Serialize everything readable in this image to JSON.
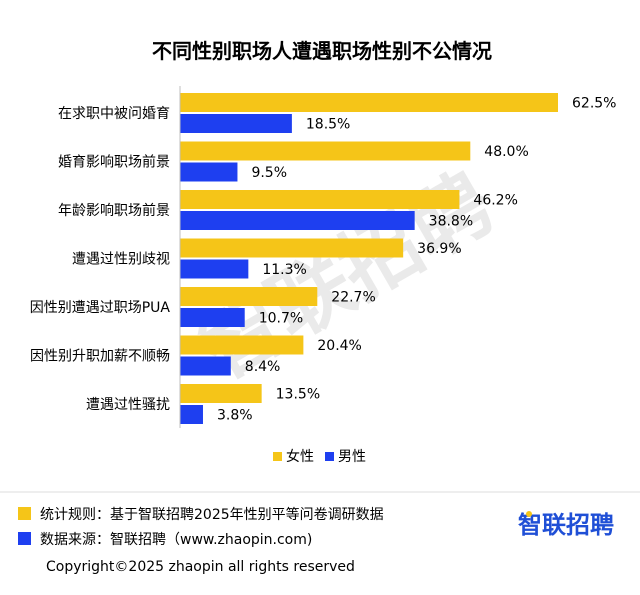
{
  "chart_data": {
    "type": "bar",
    "orientation": "horizontal",
    "title": "不同性别职场人遭遇职场性别不公情况",
    "categories": [
      "在求职中被问婚育",
      "婚育影响职场前景",
      "年龄影响职场前景",
      "遭遇过性别歧视",
      "因性别遭遇过职场PUA",
      "因性别升职加薪不顺畅",
      "遭遇过性骚扰"
    ],
    "series": [
      {
        "name": "女性",
        "color": "#f5c518",
        "values": [
          62.5,
          48.0,
          46.2,
          36.9,
          22.7,
          20.4,
          13.5
        ],
        "labels": [
          "62.5%",
          "48.0%",
          "46.2%",
          "36.9%",
          "22.7%",
          "20.4%",
          "13.5%"
        ]
      },
      {
        "name": "男性",
        "color": "#1e3ff0",
        "values": [
          18.5,
          9.5,
          38.8,
          11.3,
          10.7,
          8.4,
          3.8
        ],
        "labels": [
          "18.5%",
          "9.5%",
          "38.8%",
          "11.3%",
          "10.7%",
          "8.4%",
          "3.8%"
        ]
      }
    ],
    "xlim": [
      0,
      65
    ],
    "legend_position": "bottom",
    "grid": false
  },
  "watermark": "智联招聘",
  "footer": {
    "rule": "统计规则：基于智联招聘2025年性别平等问卷调研数据",
    "source": "数据来源：智联招聘（www.zhaopin.com)",
    "rule_color": "#f5c518",
    "source_color": "#1e3ff0"
  },
  "logo": "智联招聘",
  "copyright": "Copyright©2025 zhaopin all rights reserved"
}
